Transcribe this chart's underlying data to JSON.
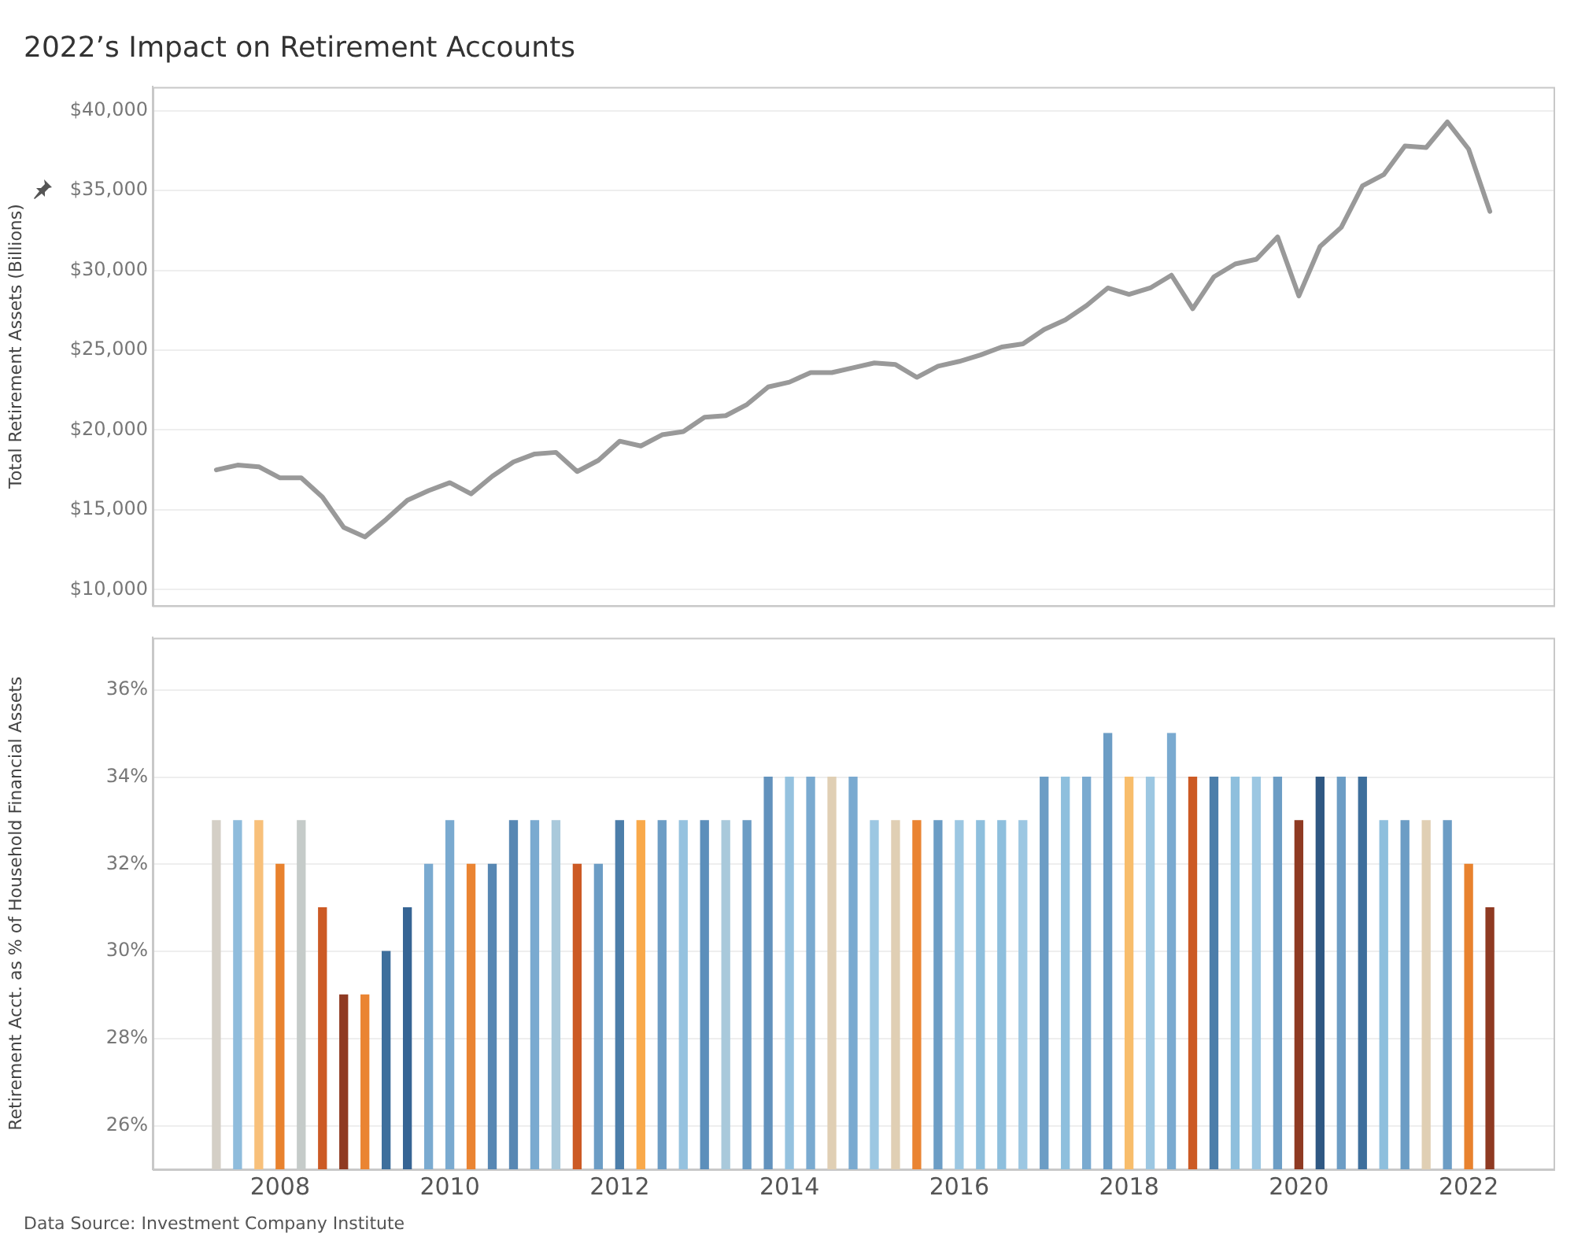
{
  "chart_data": [
    {
      "type": "line",
      "title": "2022’s Impact on Retirement Accounts",
      "ylabel": "Total Retirement Assets (Billions)",
      "x": [
        "2007-04",
        "2007-07",
        "2007-10",
        "2008-01",
        "2008-04",
        "2008-07",
        "2008-10",
        "2009-01",
        "2009-04",
        "2009-07",
        "2009-10",
        "2010-01",
        "2010-04",
        "2010-07",
        "2010-10",
        "2011-01",
        "2011-04",
        "2011-07",
        "2011-10",
        "2012-01",
        "2012-04",
        "2012-07",
        "2012-10",
        "2013-01",
        "2013-04",
        "2013-07",
        "2013-10",
        "2014-01",
        "2014-04",
        "2014-07",
        "2014-10",
        "2015-01",
        "2015-04",
        "2015-07",
        "2015-10",
        "2016-01",
        "2016-04",
        "2016-07",
        "2016-10",
        "2017-01",
        "2017-04",
        "2017-07",
        "2017-10",
        "2018-01",
        "2018-04",
        "2018-07",
        "2018-10",
        "2019-01",
        "2019-04",
        "2019-07",
        "2019-10",
        "2020-01",
        "2020-04",
        "2020-07",
        "2020-10",
        "2021-01",
        "2021-04",
        "2021-07",
        "2021-10",
        "2022-01",
        "2022-04"
      ],
      "series": [
        {
          "color": "#999999",
          "values": [
            17500,
            17800,
            17700,
            17000,
            17000,
            15800,
            13900,
            13300,
            14400,
            15600,
            16200,
            16700,
            16000,
            17100,
            18000,
            18500,
            18600,
            17400,
            18100,
            19300,
            19000,
            19700,
            19900,
            20800,
            20900,
            21600,
            22700,
            23000,
            23600,
            23600,
            23900,
            24200,
            24100,
            23300,
            24000,
            24300,
            24700,
            25200,
            25400,
            26300,
            26900,
            27800,
            28900,
            28500,
            28900,
            29700,
            27600,
            29600,
            30400,
            30700,
            32100,
            28400,
            31500,
            32700,
            35300,
            36000,
            37800,
            37700,
            39300,
            37600,
            33700
          ]
        }
      ],
      "xlim": [
        "2006-07",
        "2023-01"
      ],
      "xticks": [
        "2008",
        "2010",
        "2012",
        "2014",
        "2016",
        "2018",
        "2020",
        "2022"
      ],
      "ylim": [
        9000,
        41500
      ],
      "yticks": [
        {
          "value": 10000,
          "label": "$10,000"
        },
        {
          "value": 15000,
          "label": "$15,000"
        },
        {
          "value": 20000,
          "label": "$20,000"
        },
        {
          "value": 25000,
          "label": "$25,000"
        },
        {
          "value": 30000,
          "label": "$30,000"
        },
        {
          "value": 35000,
          "label": "$35,000"
        },
        {
          "value": 40000,
          "label": "$40,000"
        }
      ],
      "tick_labels": "y",
      "grid": "y",
      "legend": false,
      "marker": "none",
      "line_style": "solid"
    },
    {
      "type": "bar",
      "ylabel": "Retirement Acct. as % of Household Financial Assets",
      "annotations": [
        "Data Source: Investment Company Institute"
      ],
      "x": [
        "2007-04",
        "2007-07",
        "2007-10",
        "2008-01",
        "2008-04",
        "2008-07",
        "2008-10",
        "2009-01",
        "2009-04",
        "2009-07",
        "2009-10",
        "2010-01",
        "2010-04",
        "2010-07",
        "2010-10",
        "2011-01",
        "2011-04",
        "2011-07",
        "2011-10",
        "2012-01",
        "2012-04",
        "2012-07",
        "2012-10",
        "2013-01",
        "2013-04",
        "2013-07",
        "2013-10",
        "2014-01",
        "2014-04",
        "2014-07",
        "2014-10",
        "2015-01",
        "2015-04",
        "2015-07",
        "2015-10",
        "2016-01",
        "2016-04",
        "2016-07",
        "2016-10",
        "2017-01",
        "2017-04",
        "2017-07",
        "2017-10",
        "2018-01",
        "2018-04",
        "2018-07",
        "2018-10",
        "2019-01",
        "2019-04",
        "2019-07",
        "2019-10",
        "2020-01",
        "2020-04",
        "2020-07",
        "2020-10",
        "2021-01",
        "2021-04",
        "2021-07",
        "2021-10",
        "2022-01",
        "2022-04"
      ],
      "values": [
        33,
        33,
        33,
        32,
        33,
        31,
        29,
        29,
        30,
        31,
        32,
        33,
        32,
        32,
        33,
        33,
        33,
        32,
        32,
        33,
        33,
        33,
        33,
        33,
        33,
        33,
        34,
        34,
        34,
        34,
        34,
        33,
        33,
        33,
        33,
        33,
        33,
        33,
        33,
        34,
        34,
        34,
        35,
        34,
        34,
        35,
        34,
        34,
        34,
        34,
        34,
        33,
        34,
        34,
        34,
        33,
        33,
        33,
        33,
        32,
        31
      ],
      "colors": [
        "#d4cfc6",
        "#8fbcdc",
        "#f8c07a",
        "#e8822e",
        "#c5cbc9",
        "#cc5a24",
        "#8f3a22",
        "#ea8432",
        "#3e6f9c",
        "#366494",
        "#7aaad0",
        "#7aaad0",
        "#ea8432",
        "#5787b3",
        "#5787b3",
        "#7aaad0",
        "#a9c9db",
        "#cc5a24",
        "#6c9dc5",
        "#4c7eaa",
        "#f9a94a",
        "#6c9dc5",
        "#95c2df",
        "#5c8fbb",
        "#a9c9db",
        "#6c9dc5",
        "#6292bd",
        "#95c2df",
        "#7aaad0",
        "#e0cfb4",
        "#7aaad0",
        "#9cc7e2",
        "#e0cfb4",
        "#ea8432",
        "#6c9dc5",
        "#9cc7e2",
        "#8ebfdd",
        "#8ebfdd",
        "#9cc7e2",
        "#6c9dc5",
        "#8ebfdd",
        "#7aaad0",
        "#6c9dc5",
        "#f8bd6b",
        "#9cc7e2",
        "#7aaad0",
        "#cc5a24",
        "#4c7eaa",
        "#8ebfdd",
        "#9cc7e2",
        "#6c9dc5",
        "#8f3a22",
        "#2f5883",
        "#6c9dc5",
        "#3e6f9c",
        "#8ebfdd",
        "#6c9dc5",
        "#e0cfb4",
        "#6c9dc5",
        "#e8822e",
        "#8f3a22"
      ],
      "xlim": [
        "2006-07",
        "2023-01"
      ],
      "xticks": [
        "2008",
        "2010",
        "2012",
        "2014",
        "2016",
        "2018",
        "2020",
        "2022"
      ],
      "ylim": [
        25,
        37.2
      ],
      "yticks": [
        {
          "value": 26,
          "label": "26%"
        },
        {
          "value": 28,
          "label": "28%"
        },
        {
          "value": 30,
          "label": "30%"
        },
        {
          "value": 32,
          "label": "32%"
        },
        {
          "value": 34,
          "label": "34%"
        },
        {
          "value": 36,
          "label": "36%"
        }
      ],
      "grid": "y",
      "legend": false
    }
  ]
}
